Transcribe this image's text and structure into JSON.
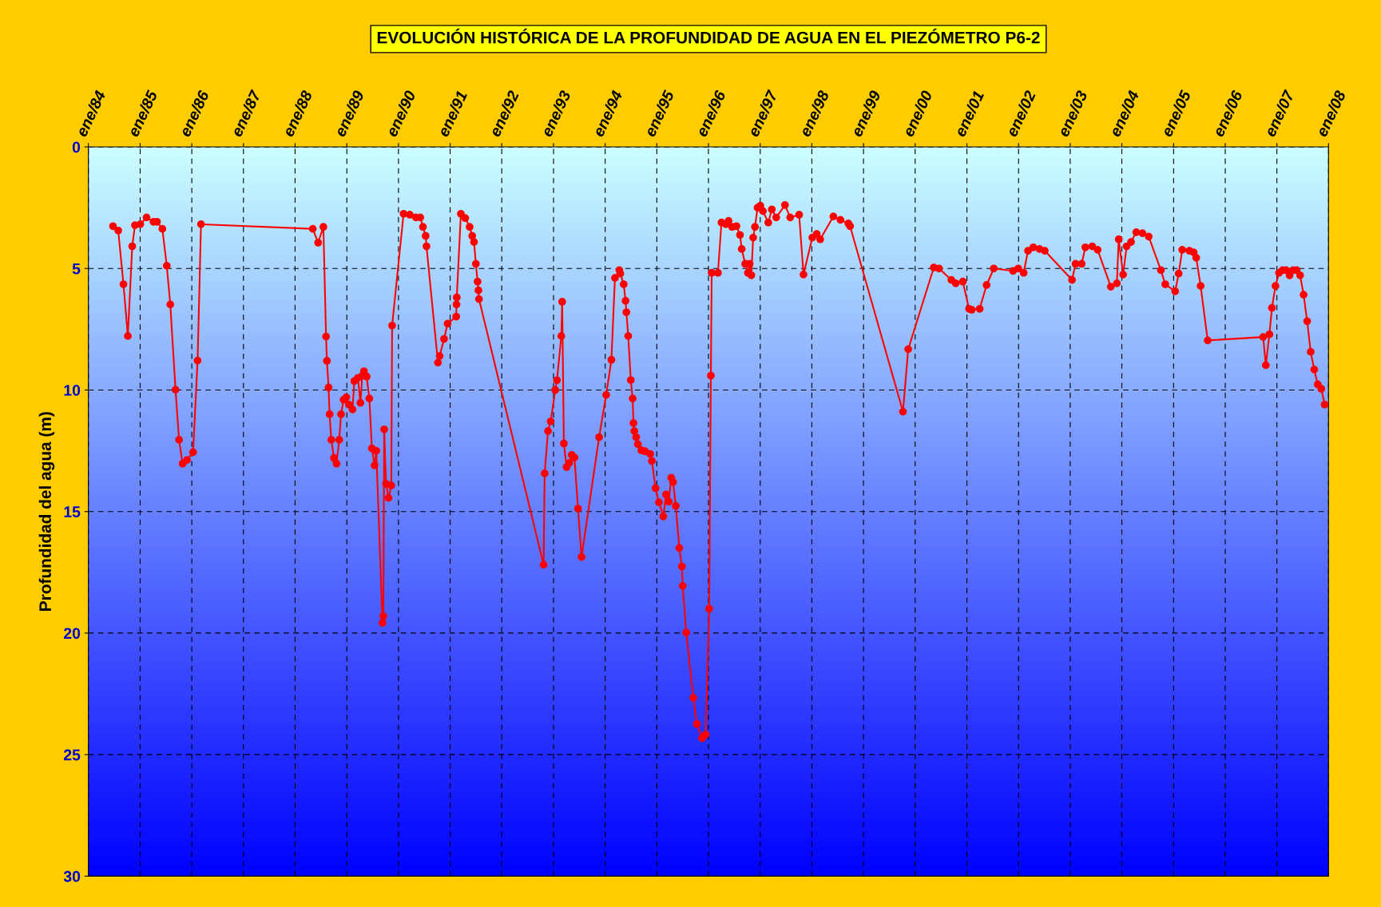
{
  "chart_data": {
    "type": "line",
    "title": "EVOLUCIÓN HISTÓRICA DE LA PROFUNDIDAD DE AGUA EN EL PIEZÓMETRO P6-2",
    "ylabel": "Profundidad del agua (m)",
    "x": [
      "1984-06-23",
      "1984-07-30",
      "1984-09-05",
      "1984-10-06",
      "1984-11-06",
      "1984-11-25",
      "1985-01-02",
      "1985-02-15",
      "1985-04-05",
      "1985-04-30",
      "1985-06-07",
      "1985-07-08",
      "1985-08-02",
      "1985-09-08",
      "1985-10-03",
      "1985-10-28",
      "1985-11-28",
      "1986-01-10",
      "1986-02-11",
      "1986-03-07",
      "1988-05-05",
      "1988-06-12",
      "1988-07-19",
      "1988-08-07",
      "1988-08-13",
      "1988-08-25",
      "1988-09-01",
      "1988-09-13",
      "1988-10-02",
      "1988-10-20",
      "1988-11-08",
      "1988-11-21",
      "1988-12-09",
      "1988-12-28",
      "1989-01-16",
      "1989-02-10",
      "1989-02-23",
      "1989-03-20",
      "1989-04-07",
      "1989-04-20",
      "1989-05-02",
      "1989-05-21",
      "1989-06-09",
      "1989-06-27",
      "1989-07-16",
      "1989-07-28",
      "1989-09-10",
      "1989-09-16",
      "1989-09-22",
      "1989-10-05",
      "1989-10-23",
      "1989-11-11",
      "1989-11-17",
      "1990-02-06",
      "1990-03-22",
      "1990-05-04",
      "1990-06-04",
      "1990-06-23",
      "1990-07-12",
      "1990-07-18",
      "1990-10-07",
      "1990-10-19",
      "1990-11-19",
      "1990-12-14",
      "1991-02-13",
      "1991-02-15",
      "1991-02-17",
      "1991-03-18",
      "1991-04-18",
      "1991-05-19",
      "1991-06-06",
      "1991-06-19",
      "1991-07-02",
      "1991-07-14",
      "1991-07-20",
      "1991-07-24",
      "1992-10-23",
      "1992-10-30",
      "1992-11-23",
      "1992-12-12",
      "1993-01-13",
      "1993-01-25",
      "1993-02-25",
      "1993-03-03",
      "1993-03-15",
      "1993-04-03",
      "1993-04-22",
      "1993-05-10",
      "1993-05-29",
      "1993-06-23",
      "1993-07-18",
      "1993-11-19",
      "1994-01-08",
      "1994-02-14",
      "1994-03-11",
      "1994-04-11",
      "1994-04-18",
      "1994-05-12",
      "1994-05-25",
      "1994-05-31",
      "1994-06-13",
      "1994-07-01",
      "1994-07-14",
      "1994-07-20",
      "1994-07-26",
      "1994-08-08",
      "1994-08-20",
      "1994-09-14",
      "1994-10-09",
      "1994-11-15",
      "1994-11-27",
      "1994-12-23",
      "1995-01-16",
      "1995-02-16",
      "1995-03-07",
      "1995-03-26",
      "1995-04-13",
      "1995-04-26",
      "1995-05-15",
      "1995-06-09",
      "1995-06-27",
      "1995-07-03",
      "1995-07-28",
      "1995-09-16",
      "1995-10-11",
      "1995-11-17",
      "1995-12-12",
      "1996-01-06",
      "1996-01-18",
      "1996-01-24",
      "1996-03-08",
      "1996-04-02",
      "1996-05-03",
      "1996-05-22",
      "1996-06-16",
      "1996-07-17",
      "1996-08-11",
      "1996-08-23",
      "1996-09-17",
      "1996-10-06",
      "1996-10-18",
      "1996-10-30",
      "1996-11-12",
      "1996-11-25",
      "1996-12-13",
      "1997-01-02",
      "1997-01-20",
      "1997-02-27",
      "1997-03-24",
      "1997-04-24",
      "1997-06-25",
      "1997-08-01",
      "1997-10-03",
      "1997-11-03",
      "1998-01-04",
      "1998-02-04",
      "1998-03-01",
      "1998-06-02",
      "1998-07-22",
      "1998-09-16",
      "1998-09-28",
      "1999-10-07",
      "1999-11-13",
      "2000-05-12",
      "2000-06-18",
      "2000-09-13",
      "2000-10-14",
      "2000-12-03",
      "2001-01-16",
      "2001-02-04",
      "2001-04-01",
      "2001-05-20",
      "2001-07-10",
      "2001-11-23",
      "2001-12-30",
      "2002-02-06",
      "2002-03-09",
      "2002-04-15",
      "2002-05-29",
      "2002-07-05",
      "2003-01-14",
      "2003-02-08",
      "2003-03-23",
      "2003-04-18",
      "2003-06-06",
      "2003-07-14",
      "2003-10-15",
      "2003-11-27",
      "2003-12-10",
      "2004-01-10",
      "2004-02-04",
      "2004-03-06",
      "2004-04-12",
      "2004-05-26",
      "2004-07-09",
      "2004-10-03",
      "2004-11-03",
      "2005-01-12",
      "2005-02-06",
      "2005-03-03",
      "2005-04-22",
      "2005-05-23",
      "2005-06-10",
      "2005-07-11",
      "2005-08-30",
      "2006-09-26",
      "2006-10-15",
      "2006-11-09",
      "2006-11-27",
      "2006-12-22",
      "2007-01-16",
      "2007-02-10",
      "2007-03-07",
      "2007-04-01",
      "2007-04-26",
      "2007-05-21",
      "2007-06-14",
      "2007-07-09",
      "2007-08-03",
      "2007-08-28",
      "2007-09-22",
      "2007-10-17",
      "2007-11-11",
      "2007-12-05"
    ],
    "series": [
      {
        "color": "#ff0000",
        "values": [
          3.26,
          3.44,
          5.65,
          7.78,
          4.09,
          3.22,
          3.18,
          2.9,
          3.08,
          3.08,
          3.37,
          4.89,
          6.48,
          9.99,
          12.05,
          13.03,
          12.88,
          12.56,
          8.79,
          3.18,
          3.37,
          3.94,
          3.29,
          7.8,
          8.8,
          9.9,
          11.0,
          12.05,
          12.8,
          13.03,
          12.05,
          11.0,
          10.4,
          10.3,
          10.6,
          10.8,
          9.63,
          9.5,
          10.53,
          9.41,
          9.23,
          9.45,
          10.35,
          12.4,
          13.1,
          12.5,
          19.58,
          19.3,
          11.62,
          13.86,
          14.44,
          13.93,
          7.35,
          2.75,
          2.79,
          2.9,
          2.9,
          3.29,
          3.66,
          4.09,
          8.87,
          8.6,
          7.9,
          7.27,
          6.98,
          6.48,
          6.19,
          2.75,
          2.93,
          3.29,
          3.66,
          3.91,
          4.81,
          5.54,
          5.9,
          6.26,
          17.19,
          13.43,
          11.69,
          11.29,
          10.0,
          9.6,
          7.78,
          6.37,
          12.2,
          13.17,
          13.0,
          12.67,
          12.78,
          14.88,
          16.87,
          11.94,
          10.2,
          8.76,
          5.39,
          5.07,
          5.21,
          5.65,
          6.33,
          6.8,
          7.78,
          9.59,
          10.35,
          11.36,
          11.69,
          11.94,
          12.23,
          12.48,
          12.52,
          12.63,
          12.92,
          14.04,
          14.62,
          15.2,
          14.3,
          14.59,
          13.61,
          13.79,
          14.77,
          16.5,
          17.26,
          18.06,
          19.98,
          22.66,
          23.74,
          24.32,
          24.18,
          19.0,
          9.41,
          5.18,
          5.18,
          3.11,
          3.18,
          3.04,
          3.29,
          3.26,
          3.62,
          4.2,
          4.81,
          5.18,
          4.81,
          5.28,
          3.73,
          3.29,
          2.5,
          2.42,
          2.64,
          3.11,
          2.57,
          2.9,
          2.39,
          2.9,
          2.79,
          5.25,
          3.73,
          3.58,
          3.8,
          2.86,
          3.0,
          3.15,
          3.26,
          10.89,
          8.32,
          4.96,
          5.0,
          5.47,
          5.61,
          5.54,
          6.66,
          6.7,
          6.66,
          5.68,
          5.0,
          5.1,
          5.0,
          5.18,
          4.27,
          4.13,
          4.2,
          4.27,
          5.47,
          4.81,
          4.81,
          4.13,
          4.09,
          4.23,
          5.75,
          5.61,
          3.8,
          5.25,
          4.09,
          3.91,
          3.51,
          3.55,
          3.69,
          5.07,
          5.65,
          5.94,
          5.21,
          4.23,
          4.27,
          4.34,
          4.56,
          5.72,
          7.96,
          7.82,
          8.98,
          7.71,
          6.62,
          5.72,
          5.18,
          5.07,
          5.07,
          5.28,
          5.07,
          5.07,
          5.28,
          6.08,
          7.17,
          8.43,
          9.16,
          9.77,
          9.95,
          10.6
        ]
      }
    ],
    "xlim": [
      "1984-01-01",
      "2008-01-01"
    ],
    "xticks": [
      {
        "value": "1984-01-01",
        "label": "ene/84"
      },
      {
        "value": "1985-01-01",
        "label": "ene/85"
      },
      {
        "value": "1986-01-01",
        "label": "ene/86"
      },
      {
        "value": "1987-01-01",
        "label": "ene/87"
      },
      {
        "value": "1988-01-01",
        "label": "ene/88"
      },
      {
        "value": "1989-01-01",
        "label": "ene/89"
      },
      {
        "value": "1990-01-01",
        "label": "ene/90"
      },
      {
        "value": "1991-01-01",
        "label": "ene/91"
      },
      {
        "value": "1992-01-01",
        "label": "ene/92"
      },
      {
        "value": "1993-01-01",
        "label": "ene/93"
      },
      {
        "value": "1994-01-01",
        "label": "ene/94"
      },
      {
        "value": "1995-01-01",
        "label": "ene/95"
      },
      {
        "value": "1996-01-01",
        "label": "ene/96"
      },
      {
        "value": "1997-01-01",
        "label": "ene/97"
      },
      {
        "value": "1998-01-01",
        "label": "ene/98"
      },
      {
        "value": "1999-01-01",
        "label": "ene/99"
      },
      {
        "value": "2000-01-01",
        "label": "ene/00"
      },
      {
        "value": "2001-01-01",
        "label": "ene/01"
      },
      {
        "value": "2002-01-01",
        "label": "ene/02"
      },
      {
        "value": "2003-01-01",
        "label": "ene/03"
      },
      {
        "value": "2004-01-01",
        "label": "ene/04"
      },
      {
        "value": "2005-01-01",
        "label": "ene/05"
      },
      {
        "value": "2006-01-01",
        "label": "ene/06"
      },
      {
        "value": "2007-01-01",
        "label": "ene/07"
      },
      {
        "value": "2008-01-01",
        "label": "ene/08"
      }
    ],
    "ylim": [
      30,
      0
    ],
    "yticks": [
      0,
      5,
      10,
      15,
      20,
      25,
      30
    ],
    "grid": true,
    "marker": "circle",
    "line_style": "solid"
  }
}
